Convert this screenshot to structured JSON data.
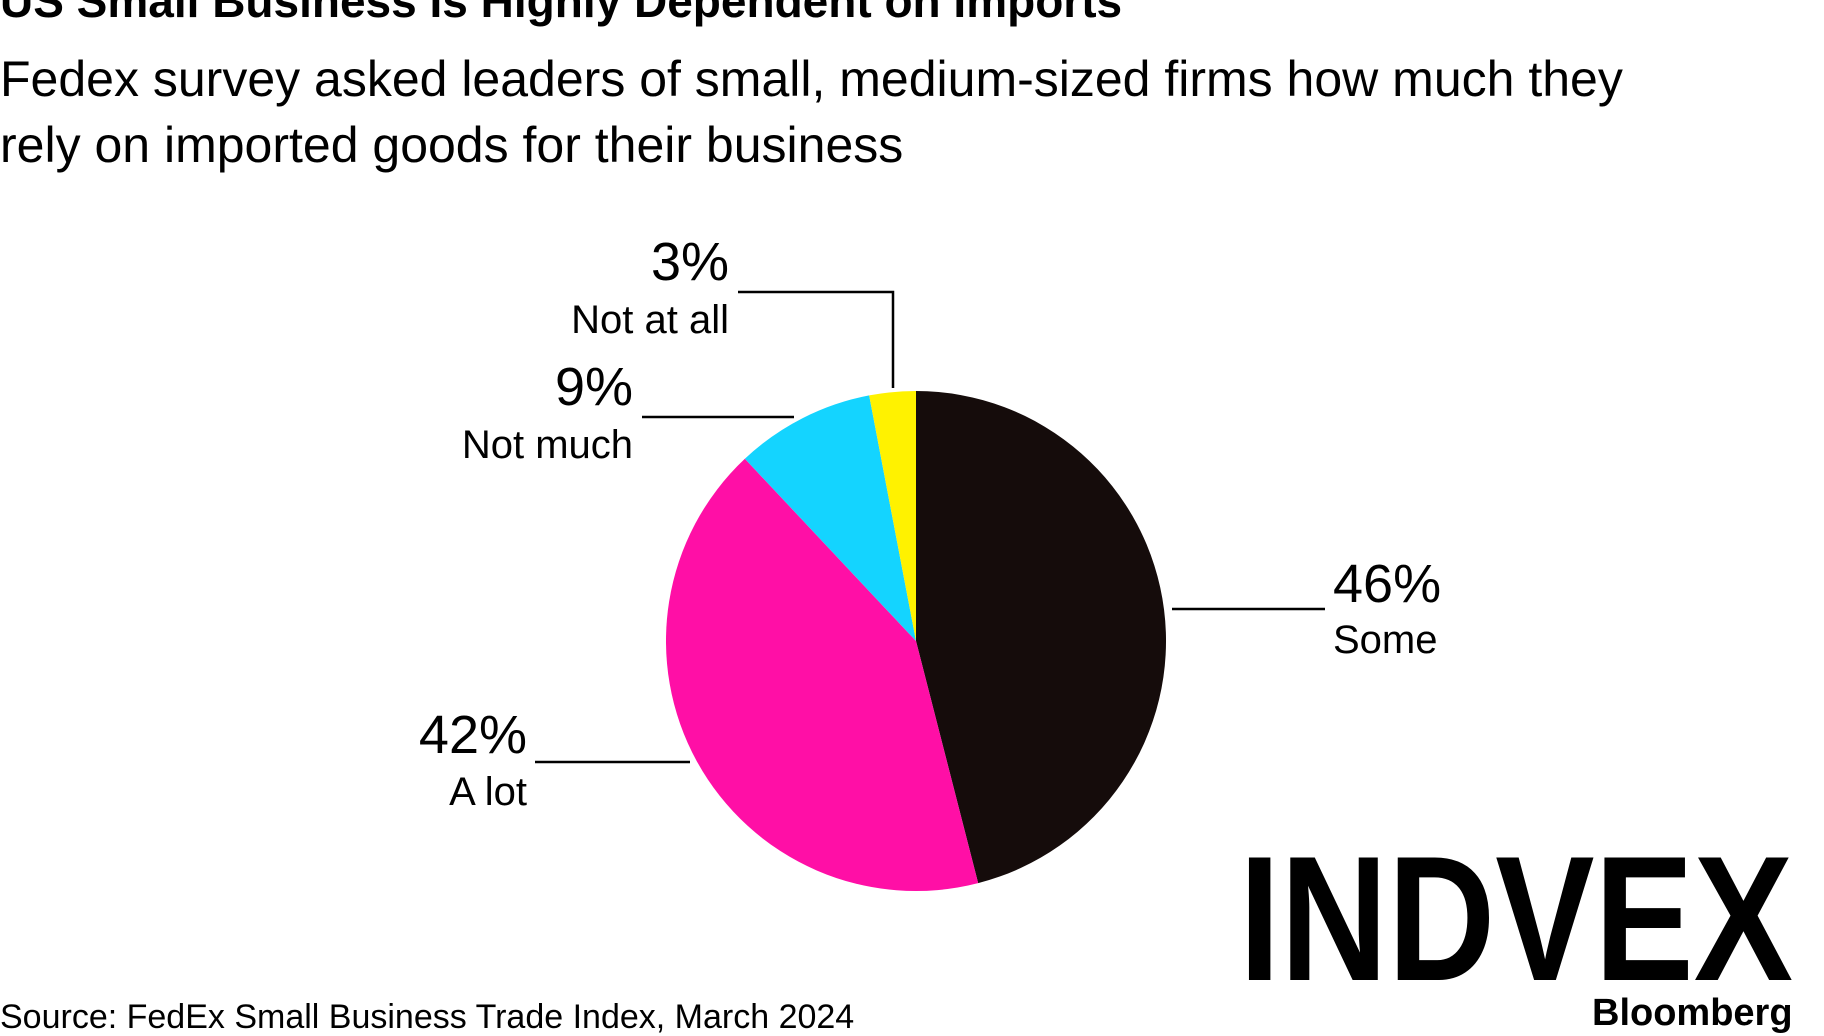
{
  "title": "US Small Business Is Highly Dependent on Imports",
  "subtitle_lines": [
    "Fedex survey asked leaders of small, medium-sized firms how much they",
    "rely on imported goods for their business"
  ],
  "source": "Source: FedEx Small Business Trade Index, March 2024",
  "brand": "Bloomberg",
  "watermark": "INDVEX",
  "chart_data": {
    "type": "pie",
    "title": "US Small Business Is Highly Dependent on Imports",
    "unit": "%",
    "slices": [
      {
        "label": "Some",
        "value": 46,
        "display": "46%",
        "color": "#150c0b"
      },
      {
        "label": "A lot",
        "value": 42,
        "display": "42%",
        "color": "#ff0fa6"
      },
      {
        "label": "Not much",
        "value": 9,
        "display": "9%",
        "color": "#14d4ff"
      },
      {
        "label": "Not at all",
        "value": 3,
        "display": "3%",
        "color": "#fff200"
      }
    ]
  }
}
